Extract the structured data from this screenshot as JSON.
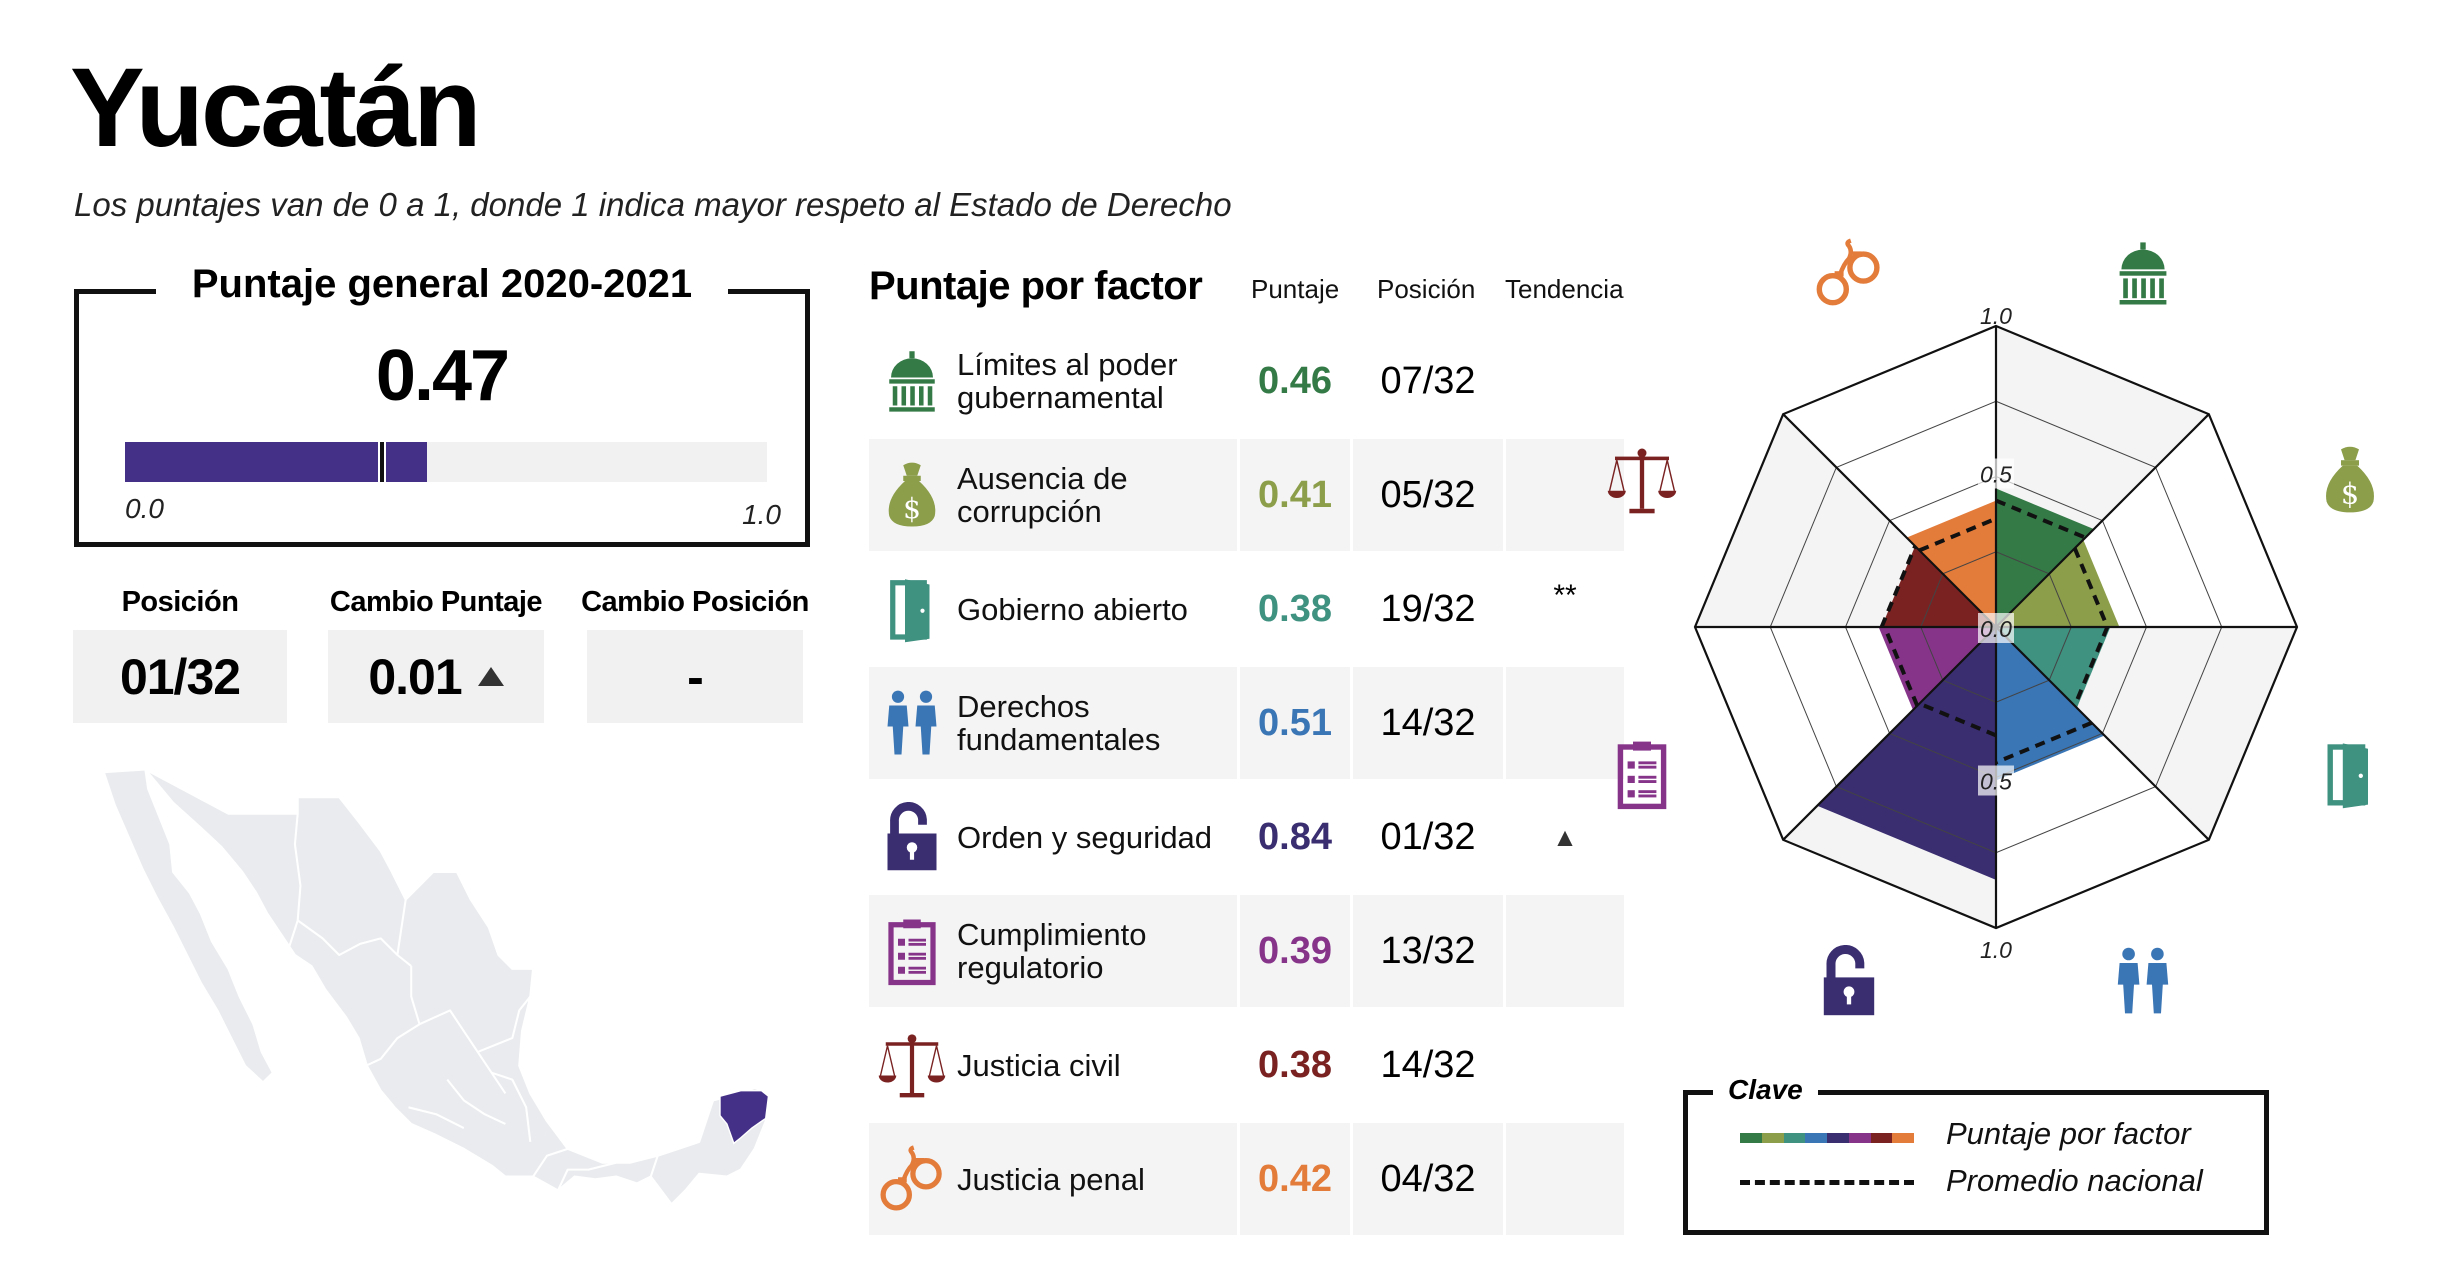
{
  "header": {
    "title": "Yucatán",
    "subtitle": "Los puntajes van de 0 a 1, donde 1 indica mayor respeto al Estado de Derecho"
  },
  "overall": {
    "title": "Puntaje general 2020-2021",
    "score": "0.47",
    "score_value": 0.47,
    "national_marker_value": 0.4,
    "bar_min_label": "0.0",
    "bar_max_label": "1.0",
    "bar_color": "#453087"
  },
  "stats": [
    {
      "label": "Posición",
      "value": "01/32"
    },
    {
      "label": "Cambio Puntaje",
      "value": "0.01",
      "trend": "up"
    },
    {
      "label": "Cambio Posición",
      "value": "-"
    }
  ],
  "map": {
    "highlighted_state": "Yucatán",
    "highlight_color": "#453087",
    "base_color": "#e9ebee"
  },
  "factors_table": {
    "heading": "Puntaje por factor",
    "columns": [
      "Puntaje",
      "Posición",
      "Tendencia"
    ],
    "rows": [
      {
        "icon": "government-building-icon",
        "name": "Límites al poder gubernamental",
        "score": "0.46",
        "position": "07/32",
        "trend": "",
        "color": "#347a47"
      },
      {
        "icon": "money-bag-icon",
        "name": "Ausencia de corrupción",
        "score": "0.41",
        "position": "05/32",
        "trend": "",
        "color": "#8c9e4a"
      },
      {
        "icon": "open-door-icon",
        "name": "Gobierno abierto",
        "score": "0.38",
        "position": "19/32",
        "trend": "**",
        "color": "#3f9180"
      },
      {
        "icon": "people-icon",
        "name": "Derechos fundamentales",
        "score": "0.51",
        "position": "14/32",
        "trend": "",
        "color": "#3a75b5"
      },
      {
        "icon": "unlocked-padlock-icon",
        "name": "Orden y seguridad",
        "score": "0.84",
        "position": "01/32",
        "trend": "▲",
        "color": "#3a2d70"
      },
      {
        "icon": "clipboard-checklist-icon",
        "name": "Cumplimiento regulatorio",
        "score": "0.39",
        "position": "13/32",
        "trend": "",
        "color": "#86348a"
      },
      {
        "icon": "scales-of-justice-icon",
        "name": "Justicia civil",
        "score": "0.38",
        "position": "14/32",
        "trend": "",
        "color": "#7a2222"
      },
      {
        "icon": "handcuffs-icon",
        "name": "Justicia penal",
        "score": "0.42",
        "position": "04/32",
        "trend": "",
        "color": "#e37b3a"
      }
    ]
  },
  "chart_data": {
    "type": "radar",
    "title": "Puntaje por factor",
    "categories": [
      "Límites al poder gubernamental",
      "Ausencia de corrupción",
      "Gobierno abierto",
      "Derechos fundamentales",
      "Orden y seguridad",
      "Cumplimiento regulatorio",
      "Justicia civil",
      "Justicia penal"
    ],
    "series": [
      {
        "name": "Puntaje por factor",
        "values": [
          0.46,
          0.41,
          0.38,
          0.51,
          0.84,
          0.39,
          0.38,
          0.42
        ]
      },
      {
        "name": "Promedio nacional",
        "values": [
          0.42,
          0.37,
          0.37,
          0.45,
          0.36,
          0.37,
          0.38,
          0.36
        ]
      }
    ],
    "colors": [
      "#347a47",
      "#8c9e4a",
      "#3f9180",
      "#3a75b5",
      "#3a2d70",
      "#86348a",
      "#7a2222",
      "#e37b3a"
    ],
    "rlim": [
      0,
      1
    ],
    "ring_values": [
      0.25,
      0.5,
      0.75,
      1.0
    ],
    "tick_labels": [
      "0.0",
      "0.5",
      "1.0"
    ],
    "grid": true
  },
  "legend": {
    "title": "Clave",
    "items": [
      {
        "label": "Puntaje por factor",
        "style": "color-bar"
      },
      {
        "label": "Promedio nacional",
        "style": "dashed"
      }
    ]
  }
}
